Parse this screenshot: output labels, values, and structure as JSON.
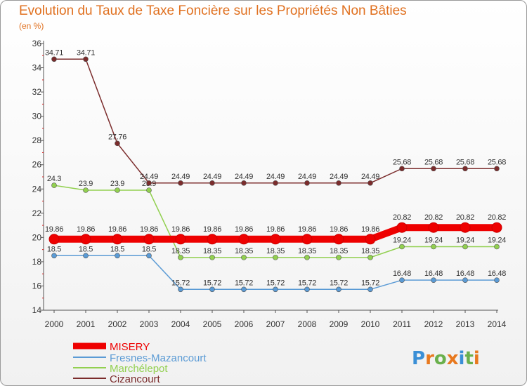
{
  "header": {
    "title": "Evolution du Taux de Taxe Foncière sur les Propriétés Non Bâties",
    "unit": "(en %)"
  },
  "logo": {
    "text": "Proxiti",
    "letter_colors": [
      "#3a8fd6",
      "#e8791f",
      "#6ab04c",
      "#e8791f",
      "#3a8fd6",
      "#6ab04c",
      "#e8791f"
    ]
  },
  "chart_data": {
    "type": "line",
    "title": "Evolution du Taux de Taxe Foncière sur les Propriétés Non Bâties",
    "ylabel": "(en %)",
    "ylim": [
      14,
      36
    ],
    "yticks": [
      14,
      16,
      18,
      20,
      22,
      24,
      26,
      28,
      30,
      32,
      34,
      36
    ],
    "x": [
      "2000",
      "2001",
      "2002",
      "2003",
      "2004",
      "2005",
      "2006",
      "2007",
      "2008",
      "2009",
      "2010",
      "2011",
      "2012",
      "2013",
      "2014"
    ],
    "grid": false,
    "legend_position": "bottom-left",
    "series": [
      {
        "name": "MISERY",
        "color": "#ee0000",
        "thick": true,
        "values": [
          19.86,
          19.86,
          19.86,
          19.86,
          19.86,
          19.86,
          19.86,
          19.86,
          19.86,
          19.86,
          19.86,
          20.82,
          20.82,
          20.82,
          20.82
        ],
        "labels": [
          "19.86",
          "19.86",
          "19.86",
          "19.86",
          "19.86",
          "19.86",
          "19.86",
          "19.86",
          "19.86",
          "19.86",
          "19.86",
          "20.82",
          "20.82",
          "20.82",
          "20.82"
        ]
      },
      {
        "name": "Fresnes-Mazancourt",
        "color": "#5b9bd5",
        "thick": false,
        "values": [
          18.5,
          18.5,
          18.5,
          18.5,
          15.72,
          15.72,
          15.72,
          15.72,
          15.72,
          15.72,
          15.72,
          16.48,
          16.48,
          16.48,
          16.48
        ],
        "labels": [
          "18.5",
          "18.5",
          "18.5",
          "18.5",
          "15.72",
          "15.72",
          "15.72",
          "15.72",
          "15.72",
          "15.72",
          "15.72",
          "16.48",
          "16.48",
          "16.48",
          "16.48"
        ]
      },
      {
        "name": "Marchélepot",
        "color": "#92d050",
        "thick": false,
        "values": [
          24.3,
          23.9,
          23.9,
          23.9,
          18.35,
          18.35,
          18.35,
          18.35,
          18.35,
          18.35,
          18.35,
          19.24,
          19.24,
          19.24,
          19.24
        ],
        "labels": [
          "24.3",
          "23.9",
          "23.9",
          "23.9",
          "18.35",
          "18.35",
          "18.35",
          "18.35",
          "18.35",
          "18.35",
          "18.35",
          "19.24",
          "19.24",
          "19.24",
          "19.24"
        ]
      },
      {
        "name": "Cizancourt",
        "color": "#7b2c2c",
        "thick": false,
        "values": [
          34.71,
          34.71,
          27.76,
          24.49,
          24.49,
          24.49,
          24.49,
          24.49,
          24.49,
          24.49,
          24.49,
          25.68,
          25.68,
          25.68,
          25.68
        ],
        "labels": [
          "34.71",
          "34.71",
          "27.76",
          "24.49",
          "24.49",
          "24.49",
          "24.49",
          "24.49",
          "24.49",
          "24.49",
          "24.49",
          "25.68",
          "25.68",
          "25.68",
          "25.68"
        ]
      }
    ]
  }
}
